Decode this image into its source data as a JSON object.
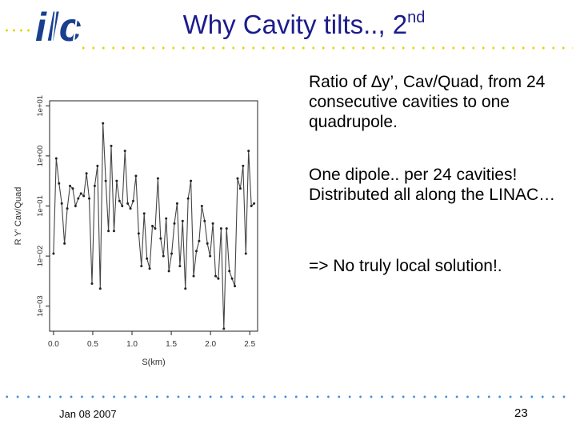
{
  "slide": {
    "title": "Why Cavity tilts.., 2",
    "title_superscript": "nd",
    "bullets": [
      "Ratio of ∆y’, Cav/Quad, from 24 consecutive cavities to one quadrupole.",
      " One dipole.. per 24 cavities! Distributed all along the LINAC…",
      " => No truly local solution!."
    ],
    "footer_date": "Jan 08 2007",
    "page_number": "23"
  },
  "colors": {
    "title": "#1c1c8c",
    "logo_blue": "#1a3f8f",
    "dots_top": "#e3d400",
    "dots_bottom": "#3a8fe0"
  },
  "logo": {
    "text": "ilc"
  },
  "chart_data": {
    "type": "line",
    "markers": true,
    "xlabel": "S(km)",
    "ylabel": "R Y' Cav/Quad",
    "log_y": true,
    "xlim": [
      -0.05,
      2.6
    ],
    "ylim_log10": [
      -3.5,
      1.1
    ],
    "x_ticks": [
      0.0,
      0.5,
      1.0,
      1.5,
      2.0,
      2.5
    ],
    "x_tick_labels": [
      "0.0",
      "0.5",
      "1.0",
      "1.5",
      "2.0",
      "2.5"
    ],
    "y_ticks_log10": [
      -3,
      -2,
      -1,
      0,
      1
    ],
    "y_tick_labels": [
      "1e−03",
      "1e−02",
      "1e−01",
      "1e+00",
      "1e+01"
    ],
    "x": [
      0.0,
      0.035,
      0.07,
      0.105,
      0.14,
      0.175,
      0.21,
      0.245,
      0.28,
      0.315,
      0.35,
      0.385,
      0.42,
      0.455,
      0.49,
      0.525,
      0.56,
      0.595,
      0.63,
      0.665,
      0.7,
      0.735,
      0.77,
      0.805,
      0.84,
      0.875,
      0.91,
      0.945,
      0.98,
      1.015,
      1.05,
      1.085,
      1.12,
      1.155,
      1.19,
      1.225,
      1.26,
      1.295,
      1.33,
      1.365,
      1.4,
      1.435,
      1.47,
      1.505,
      1.54,
      1.575,
      1.61,
      1.645,
      1.68,
      1.715,
      1.75,
      1.785,
      1.82,
      1.855,
      1.89,
      1.925,
      1.96,
      1.995,
      2.03,
      2.065,
      2.1,
      2.135,
      2.17,
      2.205,
      2.24,
      2.275,
      2.31,
      2.345,
      2.38,
      2.415,
      2.45,
      2.485,
      2.52,
      2.555
    ],
    "y_log10": [
      -1.95,
      -0.05,
      -0.55,
      -0.95,
      -1.75,
      -1.05,
      -0.6,
      -0.65,
      -1.0,
      -0.85,
      -0.75,
      -0.8,
      -0.35,
      -0.85,
      -2.55,
      -0.6,
      -0.2,
      -2.65,
      0.65,
      -0.5,
      -1.5,
      0.2,
      -1.5,
      -0.5,
      -0.9,
      -1.0,
      0.1,
      -0.95,
      -1.05,
      -0.9,
      -0.4,
      -1.55,
      -2.2,
      -1.15,
      -2.05,
      -2.25,
      -1.4,
      -1.45,
      -0.45,
      -1.65,
      -2.0,
      -1.25,
      -2.3,
      -1.95,
      -1.35,
      -0.95,
      -2.2,
      -1.3,
      -2.65,
      -0.85,
      -0.5,
      -2.4,
      -1.9,
      -1.7,
      -1.0,
      -1.3,
      -1.75,
      -2.0,
      -1.35,
      -2.4,
      -2.45,
      -1.45,
      -3.45,
      -1.45,
      -2.3,
      -2.45,
      -2.6,
      -0.45,
      -0.65,
      -0.2,
      -1.95,
      0.1,
      -1.0,
      -0.95
    ]
  }
}
